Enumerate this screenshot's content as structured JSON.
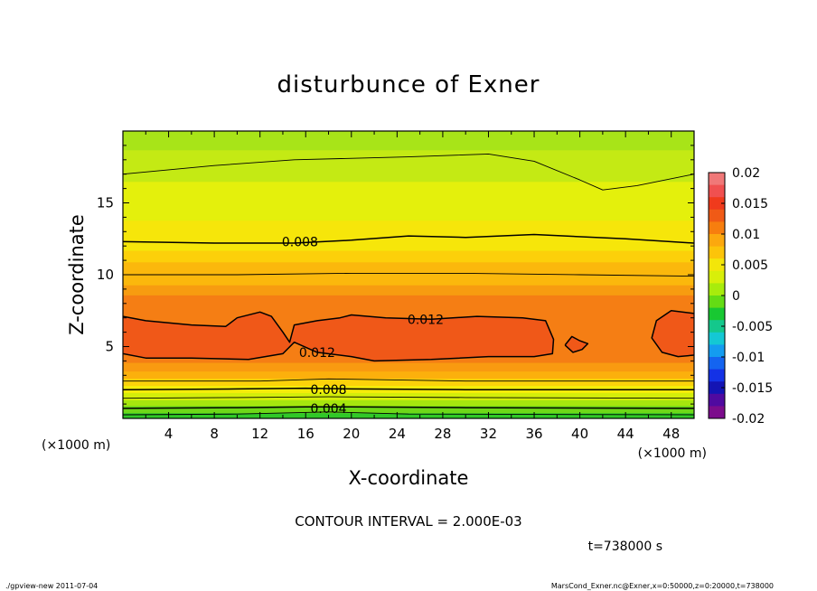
{
  "chart_data": {
    "type": "heatmap",
    "title": "disturbunce of Exner",
    "xlabel": "X-coordinate",
    "ylabel": "Z-coordinate",
    "x_unit_left": "(×1000 m)",
    "x_unit_right": "(×1000 m)",
    "xlim": [
      0,
      50
    ],
    "ylim": [
      0,
      20
    ],
    "x_ticks": [
      4,
      8,
      12,
      16,
      20,
      24,
      28,
      32,
      36,
      40,
      44,
      48
    ],
    "y_ticks": [
      5,
      10,
      15
    ],
    "contour_interval_text": "CONTOUR INTERVAL = 2.000E-03",
    "time_text": "t=738000 s",
    "contour_labels": [
      {
        "text": "0.008",
        "x": 15.5,
        "z": 12.3
      },
      {
        "text": "0.012",
        "x": 26.5,
        "z": 6.9
      },
      {
        "text": "0.012",
        "x": 17.0,
        "z": 4.6
      },
      {
        "text": "0.008",
        "x": 18.0,
        "z": 2.0
      },
      {
        "text": "0.004",
        "x": 18.0,
        "z": 0.7
      }
    ],
    "contours": [
      {
        "level": 0.002,
        "points": [
          [
            0,
            0.25
          ],
          [
            10,
            0.3
          ],
          [
            18,
            0.45
          ],
          [
            25,
            0.3
          ],
          [
            50,
            0.25
          ]
        ]
      },
      {
        "level": 0.004,
        "points": [
          [
            0,
            0.7
          ],
          [
            10,
            0.75
          ],
          [
            16,
            0.8
          ],
          [
            20,
            0.8
          ],
          [
            30,
            0.75
          ],
          [
            50,
            0.7
          ]
        ]
      },
      {
        "level": 0.006,
        "points": [
          [
            0,
            1.4
          ],
          [
            10,
            1.45
          ],
          [
            18,
            1.5
          ],
          [
            30,
            1.45
          ],
          [
            50,
            1.4
          ]
        ]
      },
      {
        "level": 0.008,
        "points": [
          [
            0,
            2.0
          ],
          [
            10,
            2.05
          ],
          [
            16,
            2.1
          ],
          [
            20,
            2.05
          ],
          [
            30,
            2.0
          ],
          [
            50,
            2.0
          ]
        ]
      },
      {
        "level": 0.01,
        "points": [
          [
            0,
            2.6
          ],
          [
            12,
            2.6
          ],
          [
            18,
            2.75
          ],
          [
            30,
            2.6
          ],
          [
            50,
            2.6
          ]
        ]
      },
      {
        "level": 0.01,
        "points": [
          [
            0,
            10.0
          ],
          [
            10,
            10.0
          ],
          [
            20,
            10.1
          ],
          [
            30,
            10.1
          ],
          [
            40,
            10.0
          ],
          [
            50,
            9.9
          ]
        ]
      },
      {
        "level": 0.008,
        "points": [
          [
            0,
            12.3
          ],
          [
            8,
            12.2
          ],
          [
            15,
            12.2
          ],
          [
            20,
            12.4
          ],
          [
            25,
            12.7
          ],
          [
            30,
            12.6
          ],
          [
            36,
            12.8
          ],
          [
            44,
            12.5
          ],
          [
            50,
            12.2
          ]
        ]
      },
      {
        "level": 0.006,
        "points": [
          [
            0,
            17.0
          ],
          [
            8,
            17.6
          ],
          [
            15,
            18.0
          ],
          [
            25,
            18.2
          ],
          [
            32,
            18.4
          ],
          [
            36,
            17.9
          ],
          [
            40,
            16.6
          ],
          [
            42,
            15.9
          ],
          [
            45,
            16.2
          ],
          [
            50,
            17.0
          ]
        ]
      },
      {
        "level": 0.012,
        "points": [
          [
            0,
            7.1
          ],
          [
            2,
            6.8
          ],
          [
            6,
            6.5
          ],
          [
            9,
            6.4
          ],
          [
            10,
            7.0
          ],
          [
            12,
            7.4
          ],
          [
            13,
            7.1
          ],
          [
            14,
            6.0
          ],
          [
            14.6,
            5.3
          ],
          [
            15,
            6.5
          ],
          [
            17,
            6.8
          ],
          [
            19,
            7.0
          ],
          [
            20,
            7.2
          ],
          [
            23,
            7.0
          ],
          [
            27,
            6.9
          ],
          [
            31,
            7.1
          ],
          [
            35,
            7.0
          ],
          [
            37,
            6.8
          ],
          [
            37.7,
            5.5
          ],
          [
            37.6,
            4.5
          ],
          [
            36,
            4.3
          ],
          [
            32,
            4.3
          ],
          [
            27,
            4.1
          ],
          [
            22,
            4.0
          ],
          [
            20,
            4.3
          ],
          [
            17,
            4.6
          ],
          [
            15,
            5.3
          ],
          [
            14,
            4.5
          ],
          [
            11,
            4.1
          ],
          [
            6,
            4.2
          ],
          [
            2,
            4.2
          ],
          [
            0,
            4.5
          ]
        ]
      },
      {
        "level": 0.012,
        "points": [
          [
            38.7,
            5.1
          ],
          [
            39.3,
            5.7
          ],
          [
            40,
            5.4
          ],
          [
            40.7,
            5.2
          ],
          [
            40.2,
            4.8
          ],
          [
            39.4,
            4.6
          ],
          [
            38.7,
            5.1
          ]
        ]
      },
      {
        "level": 0.012,
        "points": [
          [
            50,
            7.3
          ],
          [
            48,
            7.5
          ],
          [
            46.7,
            6.8
          ],
          [
            46.3,
            5.6
          ],
          [
            47.2,
            4.6
          ],
          [
            48.6,
            4.3
          ],
          [
            50,
            4.4
          ]
        ]
      }
    ],
    "colorbar": {
      "min": -0.02,
      "max": 0.02,
      "tick_labels": [
        "0.02",
        "0.015",
        "0.01",
        "0.005",
        "0",
        "-0.005",
        "-0.01",
        "-0.015",
        "-0.02"
      ],
      "colors": [
        "#f07878",
        "#f05050",
        "#f03a1c",
        "#f05a16",
        "#f77e0e",
        "#fca80e",
        "#fcc40a",
        "#f3e60a",
        "#d8ef0a",
        "#a8ec0c",
        "#64dc14",
        "#18c832",
        "#14c88c",
        "#14c8d4",
        "#149cf0",
        "#1464f0",
        "#1432e6",
        "#1414b4",
        "#500aa0",
        "#7c0c8c"
      ]
    },
    "field_bands": [
      {
        "z": 0.0,
        "color": "#30c828"
      },
      {
        "z": 0.4,
        "color": "#6ed818"
      },
      {
        "z": 0.9,
        "color": "#a6e60e"
      },
      {
        "z": 1.3,
        "color": "#d4ee0a"
      },
      {
        "z": 1.8,
        "color": "#f4ec0a"
      },
      {
        "z": 2.3,
        "color": "#fcd20a"
      },
      {
        "z": 2.8,
        "color": "#fcb00c"
      },
      {
        "z": 3.3,
        "color": "#f99a10"
      },
      {
        "z": 3.9,
        "color": "#f57e14"
      },
      {
        "z": 8.6,
        "color": "#f79c10"
      },
      {
        "z": 9.3,
        "color": "#fbb80c"
      },
      {
        "z": 10.9,
        "color": "#fcd00a"
      },
      {
        "z": 11.7,
        "color": "#f6e60a"
      },
      {
        "z": 13.8,
        "color": "#e4f00c"
      },
      {
        "z": 16.5,
        "color": "#c4ea14"
      },
      {
        "z": 18.7,
        "color": "#a8e418"
      }
    ],
    "core_color": "#f05818",
    "grid": false
  },
  "footer": {
    "left": "./gpview-new   2011-07-04",
    "right": "MarsCond_Exner.nc@Exner,x=0:50000,z=0:20000,t=738000"
  }
}
